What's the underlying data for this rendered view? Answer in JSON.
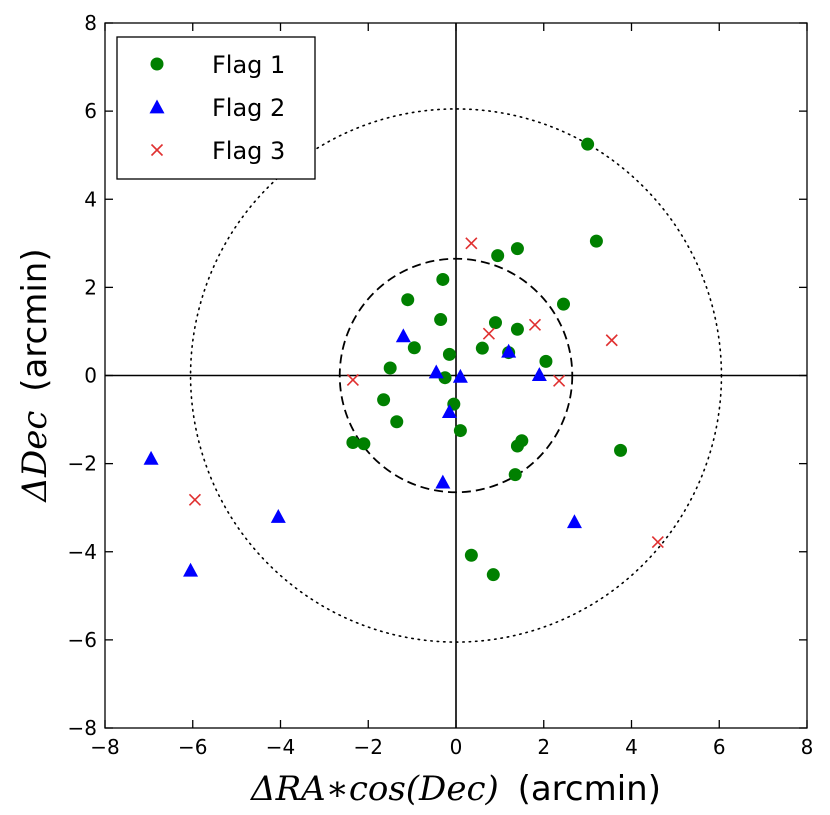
{
  "chart_data": {
    "type": "scatter",
    "xlabel_math": "ΔRA∗cos(Dec)",
    "xlabel_unit": "(arcmin)",
    "ylabel_math": "ΔDec",
    "ylabel_unit": "(arcmin)",
    "xlim": [
      -8,
      8
    ],
    "ylim": [
      -8,
      8
    ],
    "xticks": [
      "−8",
      "−6",
      "−4",
      "−2",
      "0",
      "2",
      "4",
      "6",
      "8"
    ],
    "yticks": [
      "−8",
      "−6",
      "−4",
      "−2",
      "0",
      "2",
      "4",
      "6",
      "8"
    ],
    "legend_position": "top-left",
    "grid": false,
    "reference_lines": [
      {
        "kind": "horizontal",
        "y": 0
      },
      {
        "kind": "vertical",
        "x": 0
      }
    ],
    "circles": [
      {
        "center": [
          0,
          0
        ],
        "radius": 2.65,
        "style": "dashed"
      },
      {
        "center": [
          0,
          0
        ],
        "radius": 6.05,
        "style": "dotted"
      }
    ],
    "series": [
      {
        "name": "Flag 1",
        "marker": "circle",
        "color": "#008000",
        "points": [
          [
            3.0,
            5.25
          ],
          [
            3.2,
            3.05
          ],
          [
            1.4,
            2.88
          ],
          [
            0.95,
            2.72
          ],
          [
            -0.3,
            2.18
          ],
          [
            2.45,
            1.62
          ],
          [
            -1.1,
            1.72
          ],
          [
            -0.35,
            1.27
          ],
          [
            0.9,
            1.2
          ],
          [
            1.4,
            1.05
          ],
          [
            -0.95,
            0.63
          ],
          [
            0.6,
            0.62
          ],
          [
            -0.15,
            0.48
          ],
          [
            1.2,
            0.52
          ],
          [
            2.05,
            0.32
          ],
          [
            -1.5,
            0.17
          ],
          [
            -0.25,
            -0.05
          ],
          [
            -1.65,
            -0.55
          ],
          [
            -0.05,
            -0.65
          ],
          [
            -1.35,
            -1.05
          ],
          [
            0.1,
            -1.25
          ],
          [
            -2.35,
            -1.52
          ],
          [
            -2.1,
            -1.55
          ],
          [
            1.5,
            -1.48
          ],
          [
            1.4,
            -1.6
          ],
          [
            3.75,
            -1.7
          ],
          [
            1.35,
            -2.25
          ],
          [
            0.35,
            -4.08
          ],
          [
            0.85,
            -4.52
          ]
        ]
      },
      {
        "name": "Flag 2",
        "marker": "triangle",
        "color": "#0000ff",
        "points": [
          [
            -1.2,
            0.9
          ],
          [
            1.2,
            0.55
          ],
          [
            -0.45,
            0.08
          ],
          [
            0.1,
            -0.02
          ],
          [
            1.9,
            0.02
          ],
          [
            -0.15,
            -0.82
          ],
          [
            -0.3,
            -2.42
          ],
          [
            2.7,
            -3.32
          ],
          [
            -6.95,
            -1.88
          ],
          [
            -4.05,
            -3.2
          ],
          [
            -6.05,
            -4.42
          ]
        ]
      },
      {
        "name": "Flag 3",
        "marker": "x",
        "color": "#e03030",
        "points": [
          [
            0.35,
            3.0
          ],
          [
            1.8,
            1.15
          ],
          [
            0.75,
            0.95
          ],
          [
            3.55,
            0.8
          ],
          [
            -2.35,
            -0.1
          ],
          [
            2.35,
            -0.12
          ],
          [
            -5.95,
            -2.82
          ],
          [
            4.6,
            -3.78
          ]
        ]
      }
    ]
  }
}
